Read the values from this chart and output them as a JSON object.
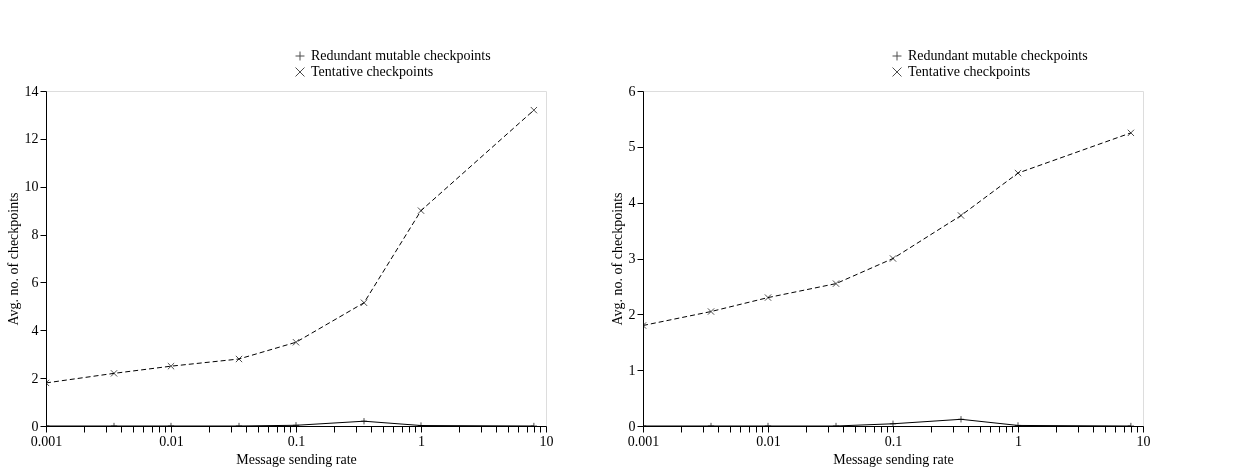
{
  "chart_data": [
    {
      "type": "line",
      "xlabel": "Message sending rate",
      "ylabel": "Avg. no. of checkpoints",
      "log": "x",
      "grid": false,
      "legend": "top right",
      "xlim": [
        0.001,
        10
      ],
      "ylim": [
        0,
        14
      ],
      "xticks": [
        0.001,
        {
          "value": 0.002,
          "label": null
        },
        {
          "value": 0.003,
          "label": null
        },
        {
          "value": 0.004,
          "label": null
        },
        {
          "value": 0.005,
          "label": null
        },
        {
          "value": 0.006,
          "label": null
        },
        {
          "value": 0.007,
          "label": null
        },
        {
          "value": 0.008,
          "label": null
        },
        {
          "value": 0.009,
          "label": null
        },
        0.01,
        {
          "value": 0.02,
          "label": null
        },
        {
          "value": 0.03,
          "label": null
        },
        {
          "value": 0.04,
          "label": null
        },
        {
          "value": 0.05,
          "label": null
        },
        {
          "value": 0.06,
          "label": null
        },
        {
          "value": 0.07,
          "label": null
        },
        {
          "value": 0.08,
          "label": null
        },
        {
          "value": 0.09,
          "label": null
        },
        0.1,
        {
          "value": 0.2,
          "label": null
        },
        {
          "value": 0.3,
          "label": null
        },
        {
          "value": 0.4,
          "label": null
        },
        {
          "value": 0.5,
          "label": null
        },
        {
          "value": 0.6,
          "label": null
        },
        {
          "value": 0.7,
          "label": null
        },
        {
          "value": 0.8,
          "label": null
        },
        {
          "value": 0.9,
          "label": null
        },
        1,
        {
          "value": 2,
          "label": null
        },
        {
          "value": 3,
          "label": null
        },
        {
          "value": 4,
          "label": null
        },
        {
          "value": 5,
          "label": null
        },
        {
          "value": 6,
          "label": null
        },
        {
          "value": 7,
          "label": null
        },
        {
          "value": 8,
          "label": null
        },
        {
          "value": 9,
          "label": null
        },
        10
      ],
      "yticks": [
        0,
        2,
        4,
        6,
        8,
        10,
        12,
        14
      ],
      "x": [
        0.001,
        0.0035,
        0.01,
        0.035,
        0.1,
        0.35,
        1,
        8
      ],
      "series": [
        {
          "name": "Redundant mutable checkpoints",
          "color": "#000000",
          "marker": "plus",
          "line_style": "solid",
          "values": [
            0,
            0,
            0,
            0,
            0.03,
            0.2,
            0.02,
            0
          ]
        },
        {
          "name": "Tentative checkpoints",
          "color": "#000000",
          "marker": "cross",
          "line_style": "dashed",
          "values": [
            1.8,
            2.2,
            2.5,
            2.8,
            3.5,
            5.15,
            9.0,
            13.2
          ]
        }
      ]
    },
    {
      "type": "line",
      "xlabel": "Message sending rate",
      "ylabel": "Avg. no. of checkpoints",
      "log": "x",
      "grid": false,
      "legend": "top right",
      "xlim": [
        0.001,
        10
      ],
      "ylim": [
        0,
        6
      ],
      "xticks": [
        0.001,
        {
          "value": 0.002,
          "label": null
        },
        {
          "value": 0.003,
          "label": null
        },
        {
          "value": 0.004,
          "label": null
        },
        {
          "value": 0.005,
          "label": null
        },
        {
          "value": 0.006,
          "label": null
        },
        {
          "value": 0.007,
          "label": null
        },
        {
          "value": 0.008,
          "label": null
        },
        {
          "value": 0.009,
          "label": null
        },
        0.01,
        {
          "value": 0.02,
          "label": null
        },
        {
          "value": 0.03,
          "label": null
        },
        {
          "value": 0.04,
          "label": null
        },
        {
          "value": 0.05,
          "label": null
        },
        {
          "value": 0.06,
          "label": null
        },
        {
          "value": 0.07,
          "label": null
        },
        {
          "value": 0.08,
          "label": null
        },
        {
          "value": 0.09,
          "label": null
        },
        0.1,
        {
          "value": 0.2,
          "label": null
        },
        {
          "value": 0.3,
          "label": null
        },
        {
          "value": 0.4,
          "label": null
        },
        {
          "value": 0.5,
          "label": null
        },
        {
          "value": 0.6,
          "label": null
        },
        {
          "value": 0.7,
          "label": null
        },
        {
          "value": 0.8,
          "label": null
        },
        {
          "value": 0.9,
          "label": null
        },
        1,
        {
          "value": 2,
          "label": null
        },
        {
          "value": 3,
          "label": null
        },
        {
          "value": 4,
          "label": null
        },
        {
          "value": 5,
          "label": null
        },
        {
          "value": 6,
          "label": null
        },
        {
          "value": 7,
          "label": null
        },
        {
          "value": 8,
          "label": null
        },
        {
          "value": 9,
          "label": null
        },
        10
      ],
      "yticks": [
        0,
        1,
        2,
        3,
        4,
        5,
        6
      ],
      "x": [
        0.001,
        0.0035,
        0.01,
        0.035,
        0.1,
        0.35,
        1,
        8
      ],
      "series": [
        {
          "name": "Redundant mutable checkpoints",
          "color": "#000000",
          "marker": "plus",
          "line_style": "solid",
          "values": [
            0,
            0,
            0,
            0,
            0.04,
            0.12,
            0.01,
            0
          ]
        },
        {
          "name": "Tentative checkpoints",
          "color": "#000000",
          "marker": "cross",
          "line_style": "dashed",
          "values": [
            1.8,
            2.05,
            2.3,
            2.55,
            3.0,
            3.77,
            4.53,
            5.25
          ]
        }
      ]
    }
  ]
}
